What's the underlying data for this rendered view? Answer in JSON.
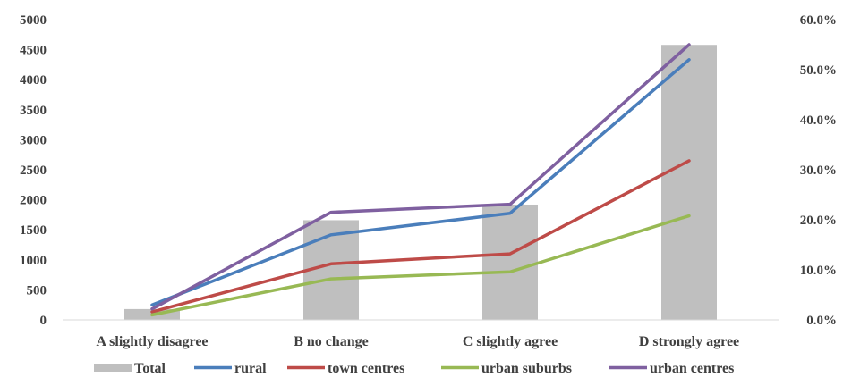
{
  "chart_data": {
    "type": "bar+line",
    "categories": [
      "A slightly disagree",
      "B no change",
      "C slightly agree",
      "D strongly agree"
    ],
    "bar_series": {
      "name": "Total",
      "axis": "left",
      "values": [
        180,
        1660,
        1920,
        4580
      ],
      "color": "#bfbfbf"
    },
    "line_series": [
      {
        "name": "rural",
        "axis": "right",
        "values": [
          3.0,
          17.0,
          21.3,
          52.0
        ],
        "color": "#4a7ebb"
      },
      {
        "name": "town centres",
        "axis": "right",
        "values": [
          1.6,
          11.2,
          13.2,
          31.8
        ],
        "color": "#be4b48"
      },
      {
        "name": "urban suburbs",
        "axis": "right",
        "values": [
          1.0,
          8.2,
          9.6,
          20.8
        ],
        "color": "#98b954"
      },
      {
        "name": "urban centres",
        "axis": "right",
        "values": [
          2.2,
          21.5,
          23.1,
          55.0
        ],
        "color": "#7f60a0"
      }
    ],
    "y_left": {
      "min": 0,
      "max": 5000,
      "ticks": [
        "0",
        "500",
        "1000",
        "1500",
        "2000",
        "2500",
        "3000",
        "3500",
        "4000",
        "4500",
        "5000"
      ]
    },
    "y_right": {
      "min": 0,
      "max": 60,
      "ticks": [
        "0.0%",
        "10.0%",
        "20.0%",
        "30.0%",
        "40.0%",
        "50.0%",
        "60.0%"
      ]
    },
    "title": "",
    "xlabel": "",
    "ylabel": "",
    "grid": false,
    "legend_position": "bottom"
  }
}
